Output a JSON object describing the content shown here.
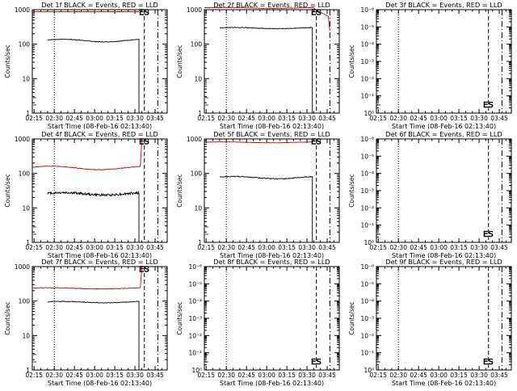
{
  "figure": {
    "background": "#ffffff",
    "axis_color": "#000000",
    "events_color": "#000000",
    "lld_color": "#d00000"
  },
  "chart_data": [
    {
      "type": "line",
      "id": "det1f",
      "title": "Det 1f BLACK = Events, RED = LLD",
      "xlabel": "Start Time (08-Feb-16 02:13:40)",
      "ylabel": "Counts/sec",
      "xlim": [
        "02:13:40",
        "03:54:00"
      ],
      "scale": "log",
      "ylim": [
        1,
        1200
      ],
      "x_ticks": [
        "02:15",
        "02:30",
        "02:45",
        "03:00",
        "03:15",
        "03:30",
        "03:45"
      ],
      "y_ticks": [
        "1",
        "10",
        "100",
        "1000"
      ],
      "markers": {
        "dotted": "02:30",
        "dashed": "03:37",
        "dashdot": "03:47",
        "label": "ES",
        "label_time": "03:33",
        "label_value": 1000
      },
      "series": [
        {
          "role": "events",
          "t_start": "02:25",
          "t_end": "03:33",
          "base": 145,
          "dev": 0.09,
          "noise": 0.02
        },
        {
          "role": "lld",
          "t_start": "02:13:40",
          "t_end": "03:33",
          "base": 1050,
          "dev": 0.0,
          "noise": 0.01
        }
      ]
    },
    {
      "type": "line",
      "id": "det2f",
      "title": "Det 2f BLACK = Events, RED = LLD",
      "xlabel": "Start Time (08-Feb-16 02:13:40)",
      "ylabel": "Counts/sec",
      "xlim": [
        "02:13:40",
        "03:54:00"
      ],
      "scale": "log",
      "ylim": [
        1,
        1200
      ],
      "x_ticks": [
        "02:15",
        "02:30",
        "02:45",
        "03:00",
        "03:15",
        "03:30",
        "03:45"
      ],
      "y_ticks": [
        "1",
        "10",
        "100",
        "1000"
      ],
      "markers": {
        "dotted": "02:30",
        "dashed": "03:37",
        "dashdot": "03:47",
        "label": "ES",
        "label_time": "03:33",
        "label_value": 1000
      },
      "series": [
        {
          "role": "events",
          "t_start": "02:25",
          "t_end": "03:34",
          "base": 340,
          "dev": 0.04,
          "noise": 0.02
        },
        {
          "role": "lld",
          "t_start": "02:13:40",
          "t_end": "03:35",
          "base": 1350,
          "dev": 0.03,
          "noise": 0.01,
          "spike": true
        }
      ]
    },
    {
      "type": "line",
      "id": "det3f",
      "title": "Det 3f BLACK = Events, RED = LLD",
      "xlabel": "Start Time (08-Feb-16 02:13:40)",
      "ylabel": "Counts/sec",
      "xlim": [
        "02:13:40",
        "03:54:00"
      ],
      "scale": "log",
      "ylim": [
        1,
        1000000.0
      ],
      "x_ticks": [
        "02:15",
        "02:30",
        "02:45",
        "03:00",
        "03:15",
        "03:30",
        "03:45"
      ],
      "y_ticks": [
        "10⁰",
        "10⁻¹",
        "10⁻²",
        "10⁻³",
        "10⁻⁴",
        "10⁻⁵",
        "10⁻⁶"
      ],
      "markers": {
        "dotted": "02:30",
        "dashed": "03:37",
        "dashdot": "03:47",
        "label": "ES",
        "label_time": "03:33",
        "label_value": 3
      },
      "series": []
    },
    {
      "type": "line",
      "id": "det4f",
      "title": "Det 4f BLACK = Events, RED = LLD",
      "xlabel": "Start Time (08-Feb-16 02:13:40)",
      "ylabel": "Counts/sec",
      "xlim": [
        "02:13:40",
        "03:54:00"
      ],
      "scale": "log",
      "ylim": [
        1,
        1200
      ],
      "x_ticks": [
        "02:15",
        "02:30",
        "02:45",
        "03:00",
        "03:15",
        "03:30",
        "03:45"
      ],
      "y_ticks": [
        "1",
        "10",
        "100",
        "1000"
      ],
      "markers": {
        "dotted": "02:30",
        "dashed": "03:37",
        "dashdot": "03:47",
        "label": "ES",
        "label_time": "03:33",
        "label_value": 1000
      },
      "series": [
        {
          "role": "events",
          "t_start": "02:25",
          "t_end": "03:33",
          "base": 28,
          "dev": 0.08,
          "noise": 0.08
        },
        {
          "role": "lld",
          "t_start": "02:13:40",
          "t_end": "03:34",
          "base": 165,
          "dev": 0.12,
          "noise": 0.02,
          "spike": true
        }
      ]
    },
    {
      "type": "line",
      "id": "det5f",
      "title": "Det 5f BLACK = Events, RED = LLD",
      "xlabel": "Start Time (08-Feb-16 02:13:40)",
      "ylabel": "Counts/sec",
      "xlim": [
        "02:13:40",
        "03:54:00"
      ],
      "scale": "log",
      "ylim": [
        1,
        1200
      ],
      "x_ticks": [
        "02:15",
        "02:30",
        "02:45",
        "03:00",
        "03:15",
        "03:30",
        "03:45"
      ],
      "y_ticks": [
        "1",
        "10",
        "100",
        "1000"
      ],
      "markers": {
        "dotted": "02:30",
        "dashed": "03:37",
        "dashdot": "03:47",
        "label": "ES",
        "label_time": "03:33",
        "label_value": 1000
      },
      "series": [
        {
          "role": "events",
          "t_start": "02:25",
          "t_end": "03:34",
          "base": 85,
          "dev": 0.08,
          "noise": 0.03
        },
        {
          "role": "lld",
          "t_start": "02:13:40",
          "t_end": "03:34",
          "base": 950,
          "dev": 0.03,
          "noise": 0.01
        }
      ]
    },
    {
      "type": "line",
      "id": "det6f",
      "title": "Det 6f BLACK = Events, RED = LLD",
      "xlabel": "Start Time (08-Feb-16 02:13:40)",
      "ylabel": "Counts/sec",
      "xlim": [
        "02:13:40",
        "03:54:00"
      ],
      "scale": "log",
      "ylim": [
        1,
        1000000.0
      ],
      "x_ticks": [
        "02:15",
        "02:30",
        "02:45",
        "03:00",
        "03:15",
        "03:30",
        "03:45"
      ],
      "y_ticks": [
        "10⁰",
        "10⁻¹",
        "10⁻²",
        "10⁻³",
        "10⁻⁴",
        "10⁻⁵",
        "10⁻⁶"
      ],
      "markers": {
        "dotted": "02:30",
        "dashed": "03:37",
        "dashdot": "03:47",
        "label": "ES",
        "label_time": "03:33",
        "label_value": 3
      },
      "series": []
    },
    {
      "type": "line",
      "id": "det7f",
      "title": "Det 7f BLACK = Events, RED = LLD",
      "xlabel": "Start Time (08-Feb-16 02:13:40)",
      "ylabel": "Counts/sec",
      "xlim": [
        "02:13:40",
        "03:54:00"
      ],
      "scale": "log",
      "ylim": [
        1,
        1200
      ],
      "x_ticks": [
        "02:15",
        "02:30",
        "02:45",
        "03:00",
        "03:15",
        "03:30",
        "03:45"
      ],
      "y_ticks": [
        "1",
        "10",
        "100",
        "1000"
      ],
      "markers": {
        "dotted": "02:30",
        "dashed": "03:37",
        "dashdot": "03:47",
        "label": "ES",
        "label_time": "03:33",
        "label_value": 1000
      },
      "series": [
        {
          "role": "events",
          "t_start": "02:25",
          "t_end": "03:33",
          "base": 105,
          "dev": 0.05,
          "noise": 0.02
        },
        {
          "role": "lld",
          "t_start": "02:13:40",
          "t_end": "03:34",
          "base": 270,
          "dev": 0.04,
          "noise": 0.02,
          "spike": true
        }
      ]
    },
    {
      "type": "line",
      "id": "det8f",
      "title": "Det 8f BLACK = Events, RED = LLD",
      "xlabel": "Start Time (08-Feb-16 02:13:40)",
      "ylabel": "Counts/sec",
      "xlim": [
        "02:13:40",
        "03:54:00"
      ],
      "scale": "log",
      "ylim": [
        1,
        1000000.0
      ],
      "x_ticks": [
        "02:15",
        "02:30",
        "02:45",
        "03:00",
        "03:15",
        "03:30",
        "03:45"
      ],
      "y_ticks": [
        "10⁰",
        "10⁻¹",
        "10⁻²",
        "10⁻³",
        "10⁻⁴",
        "10⁻⁵",
        "10⁻⁶"
      ],
      "markers": {
        "dotted": "02:30",
        "dashed": "03:37",
        "dashdot": "03:47",
        "label": "ES",
        "label_time": "03:33",
        "label_value": 3
      },
      "series": []
    },
    {
      "type": "line",
      "id": "det9f",
      "title": "Det 9f BLACK = Events, RED = LLD",
      "xlabel": "Start Time (08-Feb-16 02:13:40)",
      "ylabel": "Counts/sec",
      "xlim": [
        "02:13:40",
        "03:54:00"
      ],
      "scale": "log",
      "ylim": [
        1,
        1000000.0
      ],
      "x_ticks": [
        "02:15",
        "02:30",
        "02:45",
        "03:00",
        "03:15",
        "03:30",
        "03:45"
      ],
      "y_ticks": [
        "10⁰",
        "10⁻¹",
        "10⁻²",
        "10⁻³",
        "10⁻⁴",
        "10⁻⁵",
        "10⁻⁶"
      ],
      "markers": {
        "dotted": "02:30",
        "dashed": "03:37",
        "dashdot": "03:47",
        "label": "ES",
        "label_time": "03:33",
        "label_value": 3
      },
      "series": []
    }
  ]
}
